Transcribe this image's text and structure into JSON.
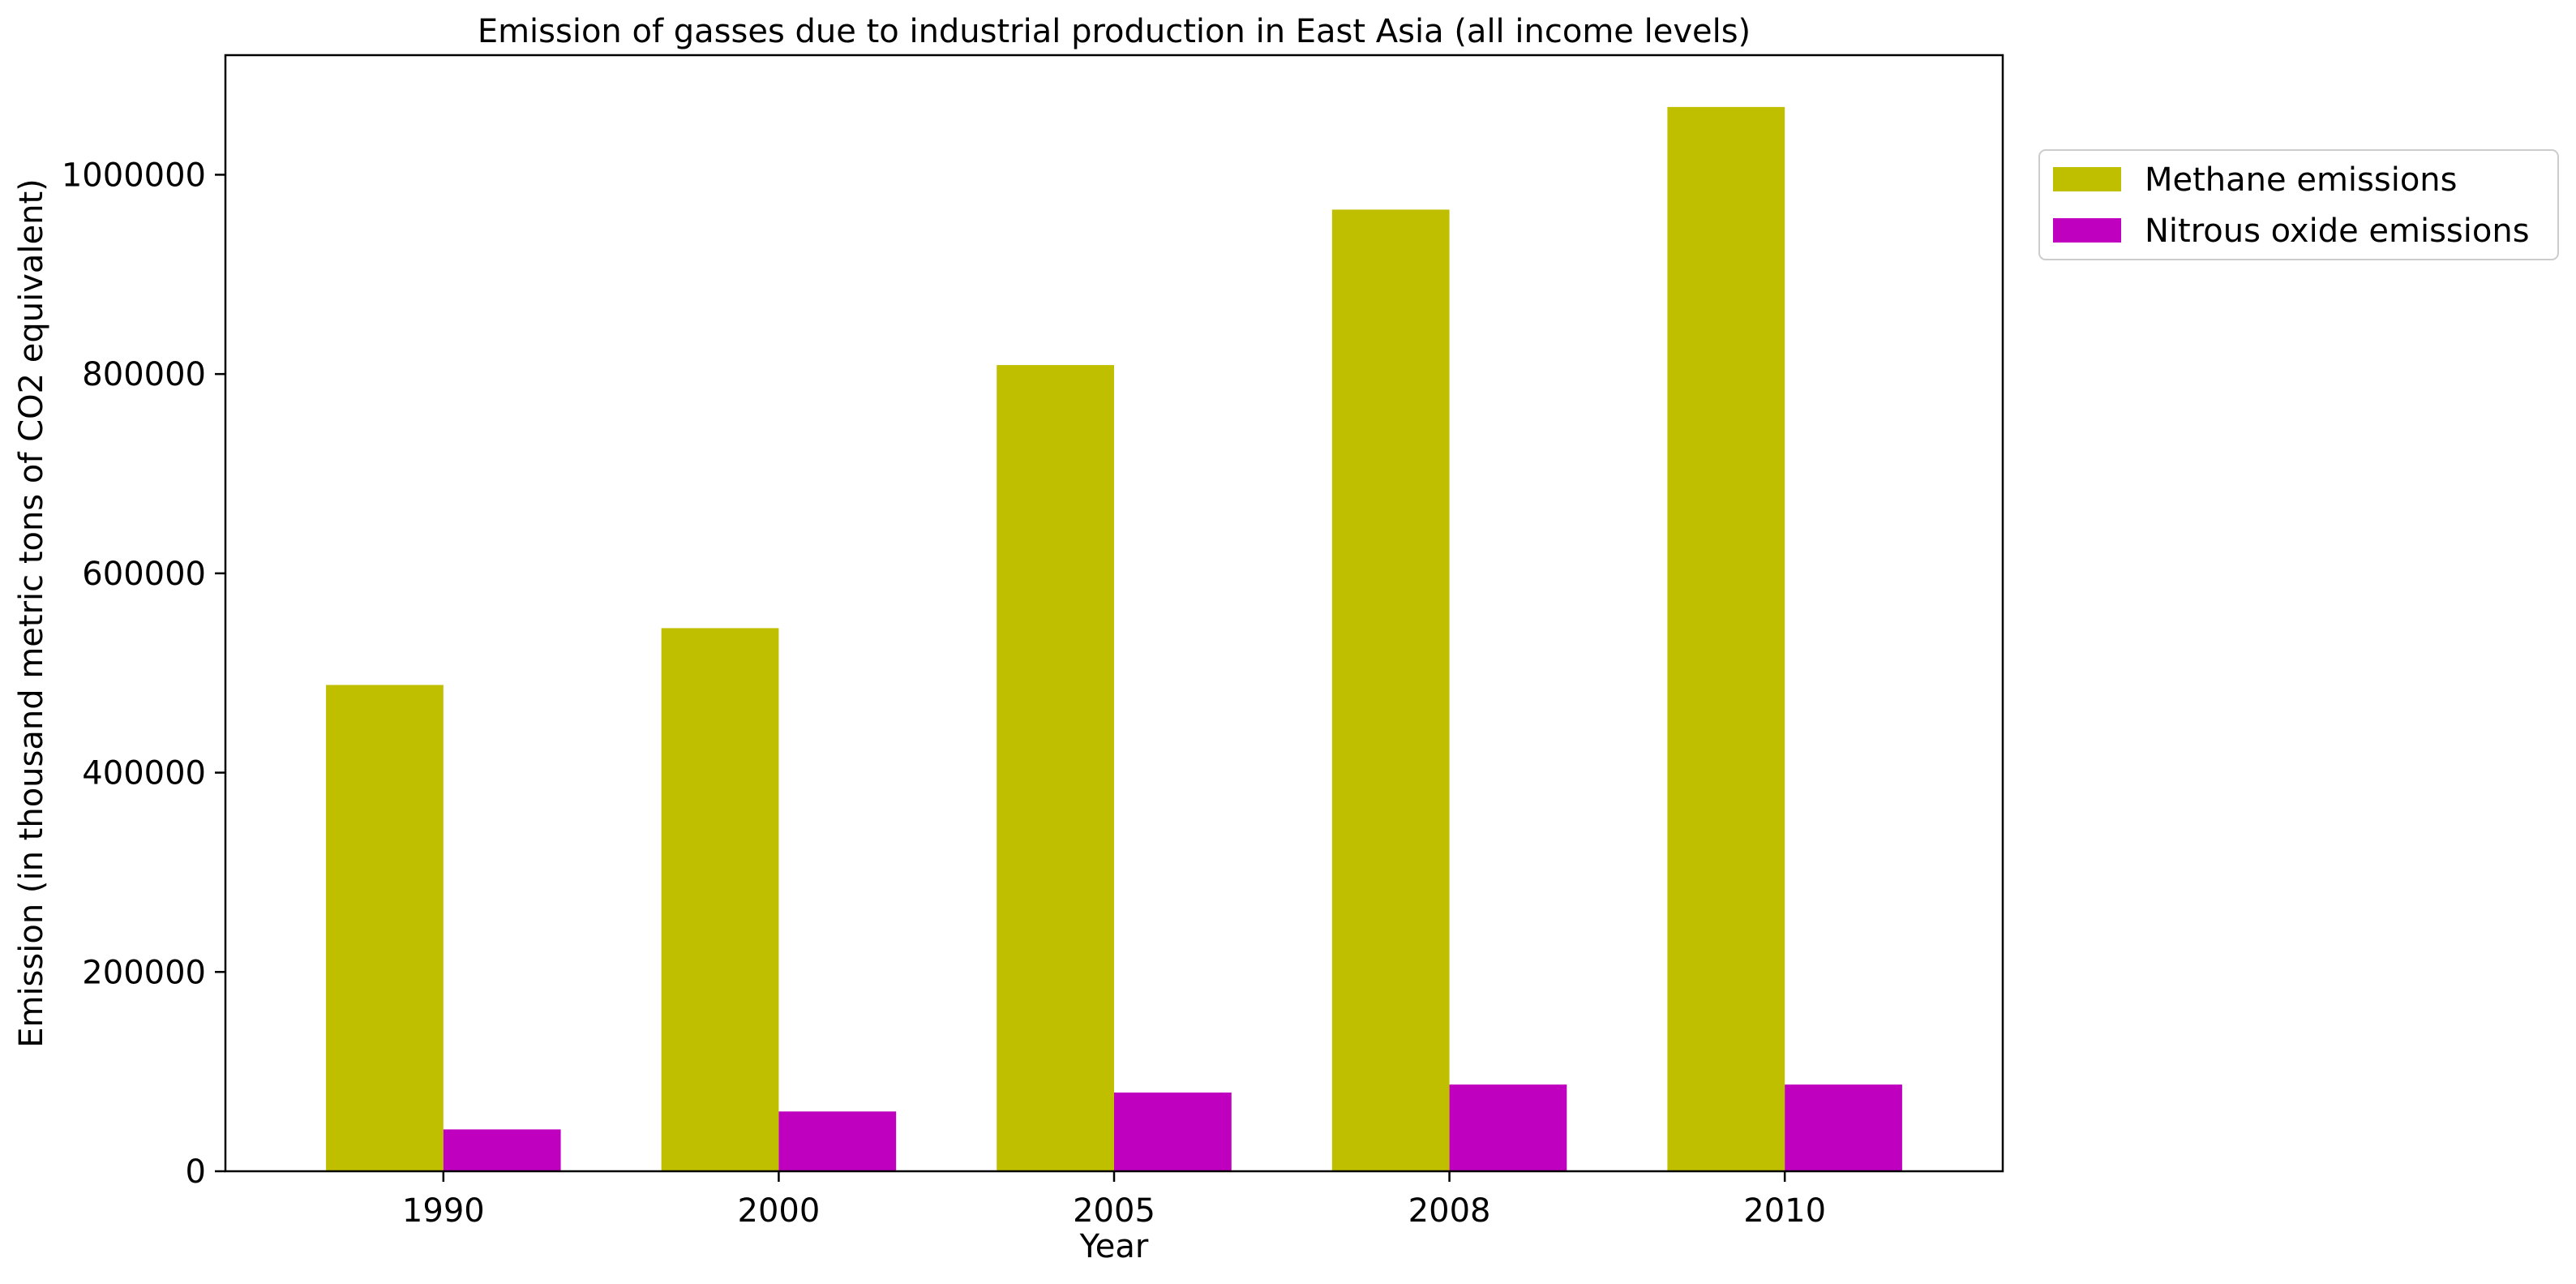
{
  "chart_data": {
    "type": "bar",
    "title": "Emission of gasses due to industrial production in East Asia (all income levels)",
    "xlabel": "Year",
    "ylabel": "Emission (in thousand metric tons of CO2 equivalent)",
    "categories": [
      "1990",
      "2000",
      "2005",
      "2008",
      "2010"
    ],
    "series": [
      {
        "name": "Methane emissions",
        "color": "#bfbf00",
        "values": [
          488000,
          545000,
          809000,
          965000,
          1068000
        ]
      },
      {
        "name": "Nitrous oxide emissions",
        "color": "#bf00bf",
        "values": [
          42000,
          60000,
          79000,
          87000,
          87000
        ]
      }
    ],
    "ylim": [
      0,
      1120000
    ],
    "yticks": [
      0,
      200000,
      400000,
      600000,
      800000,
      1000000
    ],
    "ytick_labels": [
      "0",
      "200000",
      "400000",
      "600000",
      "800000",
      "1000000"
    ],
    "grid": false,
    "legend_position": "outside-right-top"
  }
}
